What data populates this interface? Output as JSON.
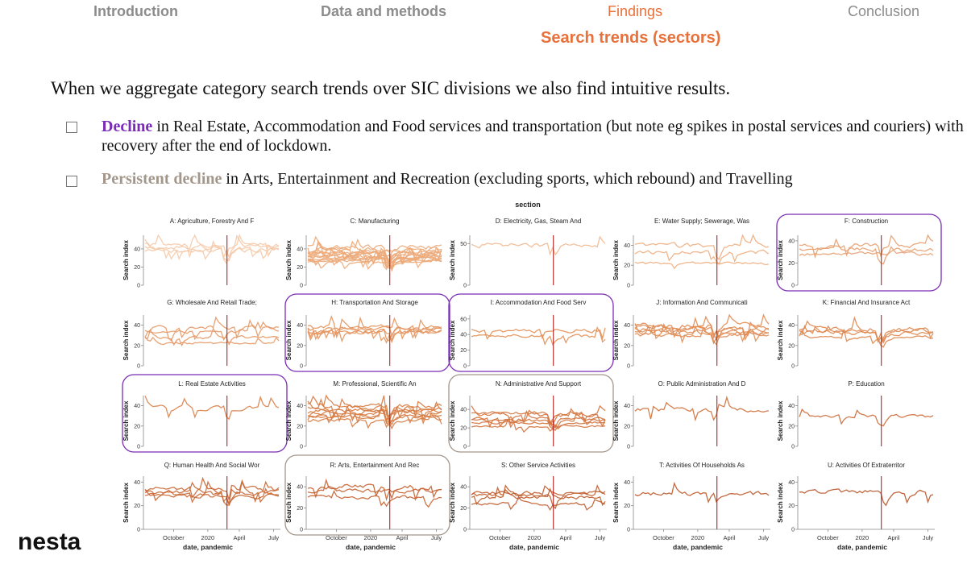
{
  "nav": {
    "items": [
      "Introduction",
      "Data and methods",
      "Findings",
      "Conclusion"
    ],
    "sub": "Search trends (sectors)"
  },
  "headline": "When we aggregate category search trends over SIC divisions we also find intuitive results.",
  "bullets": [
    {
      "keyword": "Decline",
      "text": " in Real Estate, Accommodation and Food services and transportation (but note eg spikes in postal services and couriers) with recovery after the end of lockdown."
    },
    {
      "keyword": "Persistent decline",
      "text": " in Arts, Entertainment and Recreation (excluding sports, which rebound) and Travelling"
    }
  ],
  "logo": "nesta",
  "colors": {
    "accent": "#e8703a",
    "purple": "#7b2cb5",
    "beige": "#a3968a",
    "pandemic_line": "#b22222"
  },
  "chart_data": {
    "type": "line",
    "facet_title": "section",
    "x_label": "date, pandemic",
    "y_label": "Search index",
    "x_ticks": [
      "October",
      "2020",
      "April",
      "July"
    ],
    "x_range": [
      "2019-07",
      "2020-07"
    ],
    "pandemic_marker": "2020-03",
    "panels": [
      {
        "title": "A: Agriculture, Forestry And F",
        "yticks": [
          0,
          20,
          40
        ],
        "ymax": 55,
        "ncurves": 4,
        "levels": [
          40,
          42,
          38,
          44
        ],
        "color": "#f5c9a8",
        "highlight": null
      },
      {
        "title": "C: Manufacturing",
        "yticks": [
          0,
          20,
          40
        ],
        "ymax": 55,
        "ncurves": 14,
        "levels": [
          25,
          28,
          30,
          32,
          35,
          38,
          40,
          42,
          29,
          33,
          36,
          27,
          31,
          37
        ],
        "color": "#ecaa7a",
        "highlight": null
      },
      {
        "title": "D: Electricity, Gas, Steam And",
        "yticks": [
          0,
          50
        ],
        "ymax": 60,
        "ncurves": 1,
        "levels": [
          48
        ],
        "color": "#f0b991",
        "highlight": null
      },
      {
        "title": "E: Water Supply; Sewerage, Was",
        "yticks": [
          0,
          20,
          40
        ],
        "ymax": 50,
        "ncurves": 3,
        "levels": [
          40,
          22,
          33
        ],
        "color": "#eeae80",
        "highlight": null
      },
      {
        "title": "F: Construction",
        "yticks": [
          0,
          20,
          40
        ],
        "ymax": 45,
        "ncurves": 3,
        "levels": [
          32,
          28,
          36
        ],
        "color": "#e8a070",
        "highlight": "purple"
      },
      {
        "title": "G: Wholesale And Retail Trade;",
        "yticks": [
          0,
          20,
          40
        ],
        "ymax": 50,
        "ncurves": 4,
        "levels": [
          22,
          28,
          34,
          38
        ],
        "color": "#e59a68",
        "highlight": null
      },
      {
        "title": "H: Transportation And Storage",
        "yticks": [
          0,
          20,
          40
        ],
        "ymax": 50,
        "ncurves": 5,
        "levels": [
          36,
          34,
          38,
          33,
          37
        ],
        "color": "#e4955e",
        "highlight": "purple"
      },
      {
        "title": "I: Accommodation And Food Serv",
        "yticks": [
          0,
          20,
          40,
          60
        ],
        "ymax": 65,
        "ncurves": 2,
        "levels": [
          45,
          38
        ],
        "color": "#e29058",
        "highlight": "purple"
      },
      {
        "title": "J: Information And Communicati",
        "yticks": [
          0,
          20,
          40
        ],
        "ymax": 50,
        "ncurves": 6,
        "levels": [
          30,
          34,
          36,
          38,
          40,
          32
        ],
        "color": "#e08c55",
        "highlight": null
      },
      {
        "title": "K: Financial And Insurance Act",
        "yticks": [
          0,
          20,
          40
        ],
        "ymax": 50,
        "ncurves": 4,
        "levels": [
          28,
          32,
          34,
          36
        ],
        "color": "#de8850",
        "highlight": null
      },
      {
        "title": "L: Real Estate Activities",
        "yticks": [
          0,
          20,
          40
        ],
        "ymax": 50,
        "ncurves": 1,
        "levels": [
          38
        ],
        "color": "#d9824a",
        "highlight": "purple"
      },
      {
        "title": "M: Professional, Scientific An",
        "yticks": [
          0,
          20,
          40
        ],
        "ymax": 50,
        "ncurves": 8,
        "levels": [
          26,
          30,
          33,
          35,
          38,
          40,
          29,
          36
        ],
        "color": "#d67c44",
        "highlight": null
      },
      {
        "title": "N: Administrative And Support",
        "yticks": [
          0,
          20,
          40
        ],
        "ymax": 55,
        "ncurves": 6,
        "levels": [
          22,
          26,
          30,
          34,
          36,
          28
        ],
        "color": "#d47640",
        "highlight": "beige"
      },
      {
        "title": "O: Public Administration And D",
        "yticks": [
          0,
          20,
          40
        ],
        "ymax": 50,
        "ncurves": 1,
        "levels": [
          36
        ],
        "color": "#cf713c",
        "highlight": null
      },
      {
        "title": "P: Education",
        "yticks": [
          0,
          20,
          40
        ],
        "ymax": 50,
        "ncurves": 1,
        "levels": [
          30
        ],
        "color": "#cc6c38",
        "highlight": null
      },
      {
        "title": "Q: Human Health And Social Wor",
        "yticks": [
          0,
          20,
          40
        ],
        "ymax": 45,
        "ncurves": 4,
        "levels": [
          28,
          30,
          32,
          34
        ],
        "color": "#c96835",
        "highlight": null
      },
      {
        "title": "R: Arts, Entertainment And Rec",
        "yticks": [
          0,
          20,
          40
        ],
        "ymax": 50,
        "ncurves": 3,
        "levels": [
          36,
          40,
          30
        ],
        "color": "#c56331",
        "highlight": "beige"
      },
      {
        "title": "S: Other Service Activities",
        "yticks": [
          0,
          20,
          40
        ],
        "ymax": 50,
        "ncurves": 4,
        "levels": [
          24,
          30,
          32,
          34
        ],
        "color": "#c05e2f",
        "highlight": null
      },
      {
        "title": "T: Activities Of Households As",
        "yticks": [
          0,
          20,
          40
        ],
        "ymax": 45,
        "ncurves": 1,
        "levels": [
          30
        ],
        "color": "#bc5a2c",
        "highlight": null
      },
      {
        "title": "U: Activities Of Extraterritor",
        "yticks": [
          0,
          20,
          40
        ],
        "ymax": 45,
        "ncurves": 1,
        "levels": [
          32
        ],
        "color": "#b8572a",
        "highlight": null
      }
    ]
  }
}
